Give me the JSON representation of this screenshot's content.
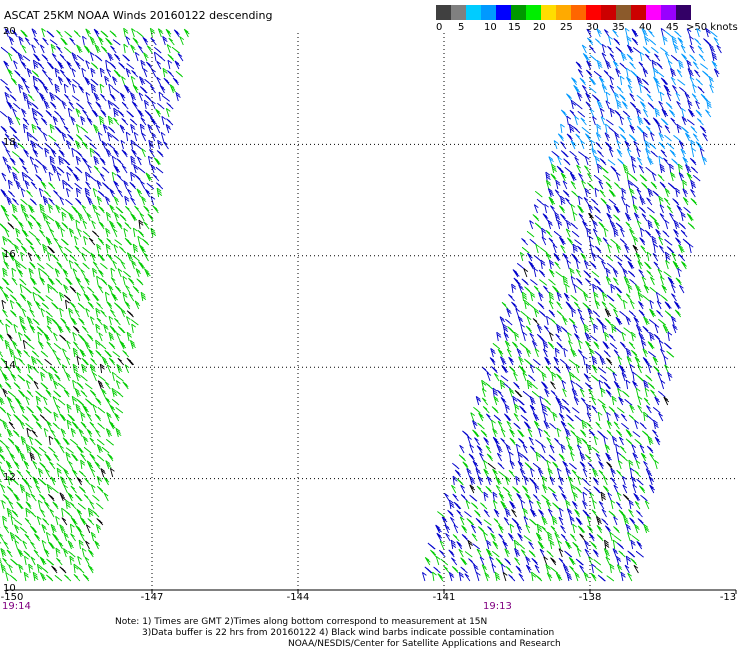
{
  "title": "ASCAT 25KM NOAA Winds 20160122 descending",
  "color_scale": {
    "colors": [
      "#404040",
      "#808080",
      "#00ccff",
      "#0099ff",
      "#0000ff",
      "#009900",
      "#00ee00",
      "#ffdd00",
      "#ffaa00",
      "#ff6600",
      "#ff0000",
      "#cc0000",
      "#8b5a2b",
      "#cc0000",
      "#ff00ff",
      "#9900ff",
      "#330066"
    ],
    "labels": [
      "0",
      "5",
      "10",
      "15",
      "20",
      "25",
      "30",
      "35",
      "40",
      "45",
      ">50 knots"
    ]
  },
  "chart_data": {
    "type": "wind-barb-map",
    "lon_range": [
      -150,
      -135
    ],
    "lat_range": [
      10,
      20
    ],
    "x_tick_labels": [
      "-150",
      "-147",
      "-144",
      "-141",
      "-138",
      "-13"
    ],
    "y_tick_labels": [
      "20",
      "18",
      "16",
      "14",
      "12",
      "10"
    ],
    "grid": true,
    "swaths": [
      {
        "time_label": "19:14",
        "lon_west_bottom": -150.2,
        "lon_east_bottom": -148.2,
        "lon_west_top": -150.0,
        "lon_east_top": -146.2
      },
      {
        "time_label": "19:13",
        "lon_west_bottom": -141.5,
        "lon_east_bottom": -137.0,
        "lon_west_top": -138.0,
        "lon_east_top": -135.2
      }
    ],
    "barb_colors": [
      "#00cc00",
      "#0000cc",
      "#0099ff"
    ]
  },
  "notes": [
    "Note: 1) Times are GMT 2)Times along bottom correspond to measurement at 15N",
    "3)Data buffer is 22 hrs from 20160122 4) Black wind barbs indicate possible contamination",
    "NOAA/NESDIS/Center for Satellite Applications and Research"
  ]
}
